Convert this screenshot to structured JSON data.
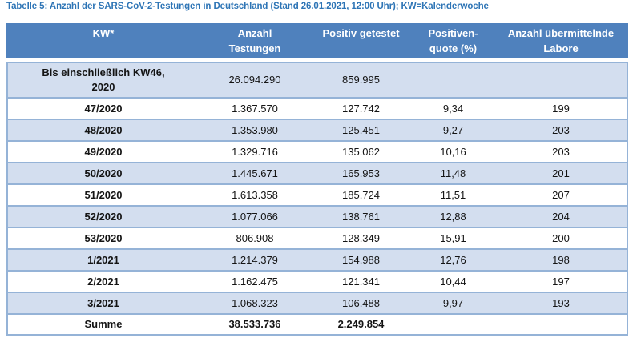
{
  "title": "Tabelle 5: Anzahl der SARS-CoV-2-Testungen in Deutschland (Stand 26.01.2021, 12:00 Uhr); KW=Kalenderwoche",
  "colors": {
    "title": "#2E75B6",
    "header_bg": "#4F81BD",
    "row_alt_bg": "#D3DEEF",
    "border": "#95B3D7",
    "header_text": "#FFFFFF"
  },
  "table": {
    "columns": [
      "KW*",
      "Anzahl\nTestungen",
      "Positiv getestet",
      "Positiven-\nquote (%)",
      "Anzahl übermittelnde\nLabore"
    ],
    "rows": [
      {
        "kw": "Bis einschließlich KW46,\n2020",
        "testungen": "26.094.290",
        "positiv": "859.995",
        "quote": "",
        "labore": ""
      },
      {
        "kw": "47/2020",
        "testungen": "1.367.570",
        "positiv": "127.742",
        "quote": "9,34",
        "labore": "199"
      },
      {
        "kw": "48/2020",
        "testungen": "1.353.980",
        "positiv": "125.451",
        "quote": "9,27",
        "labore": "203"
      },
      {
        "kw": "49/2020",
        "testungen": "1.329.716",
        "positiv": "135.062",
        "quote": "10,16",
        "labore": "203"
      },
      {
        "kw": "50/2020",
        "testungen": "1.445.671",
        "positiv": "165.953",
        "quote": "11,48",
        "labore": "201"
      },
      {
        "kw": "51/2020",
        "testungen": "1.613.358",
        "positiv": "185.724",
        "quote": "11,51",
        "labore": "207"
      },
      {
        "kw": "52/2020",
        "testungen": "1.077.066",
        "positiv": "138.761",
        "quote": "12,88",
        "labore": "204"
      },
      {
        "kw": "53/2020",
        "testungen": "806.908",
        "positiv": "128.349",
        "quote": "15,91",
        "labore": "200"
      },
      {
        "kw": "1/2021",
        "testungen": "1.214.379",
        "positiv": "154.988",
        "quote": "12,76",
        "labore": "198"
      },
      {
        "kw": "2/2021",
        "testungen": "1.162.475",
        "positiv": "121.341",
        "quote": "10,44",
        "labore": "197"
      },
      {
        "kw": "3/2021",
        "testungen": "1.068.323",
        "positiv": "106.488",
        "quote": "9,97",
        "labore": "193"
      },
      {
        "kw": "Summe",
        "testungen": "38.533.736",
        "positiv": "2.249.854",
        "quote": "",
        "labore": ""
      }
    ]
  }
}
